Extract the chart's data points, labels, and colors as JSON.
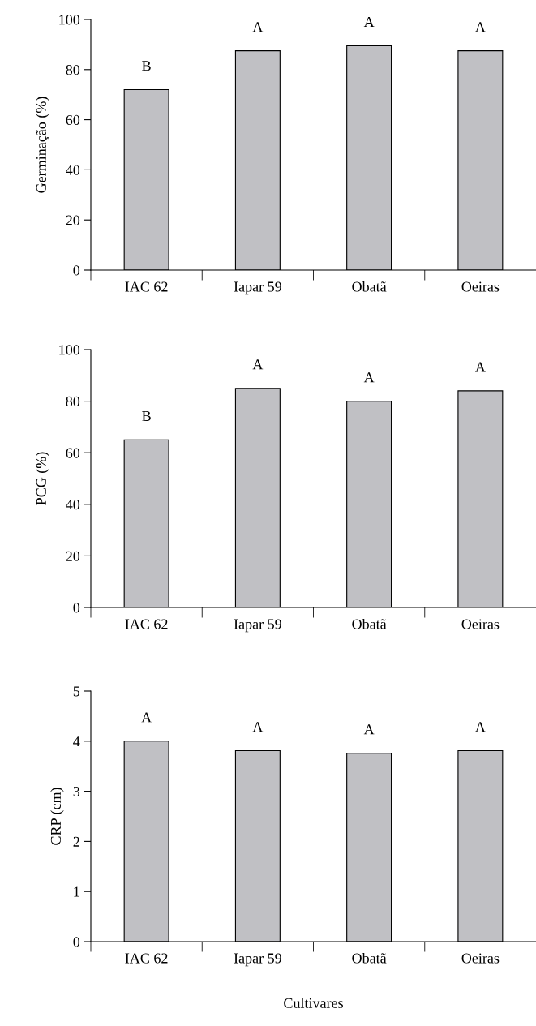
{
  "chart_data": [
    {
      "type": "bar",
      "ylabel": "Germinação (%)",
      "categories": [
        "IAC 62",
        "Iapar 59",
        "Obatã",
        "Oeiras"
      ],
      "values": [
        72,
        87.5,
        89.5,
        87.5
      ],
      "color": "#c0c0c4",
      "ylim": [
        0,
        100
      ],
      "yticks": [
        0,
        20,
        40,
        60,
        80,
        100
      ],
      "grid": false,
      "annotations": [
        "B",
        "A",
        "A",
        "A"
      ]
    },
    {
      "type": "bar",
      "ylabel": "PCG (%)",
      "categories": [
        "IAC 62",
        "Iapar 59",
        "Obatã",
        "Oeiras"
      ],
      "values": [
        65,
        85,
        80,
        84
      ],
      "color": "#c0c0c4",
      "ylim": [
        0,
        100
      ],
      "yticks": [
        0,
        20,
        40,
        60,
        80,
        100
      ],
      "grid": false,
      "annotations": [
        "B",
        "A",
        "A",
        "A"
      ]
    },
    {
      "type": "bar",
      "ylabel": "CRP (cm)",
      "xlabel": "Cultivares",
      "categories": [
        "IAC 62",
        "Iapar 59",
        "Obatã",
        "Oeiras"
      ],
      "values": [
        4.0,
        3.81,
        3.76,
        3.81
      ],
      "color": "#c0c0c4",
      "ylim": [
        0,
        5
      ],
      "yticks": [
        0,
        1,
        2,
        3,
        4,
        5
      ],
      "grid": false,
      "annotations": [
        "A",
        "A",
        "A",
        "A"
      ]
    }
  ]
}
